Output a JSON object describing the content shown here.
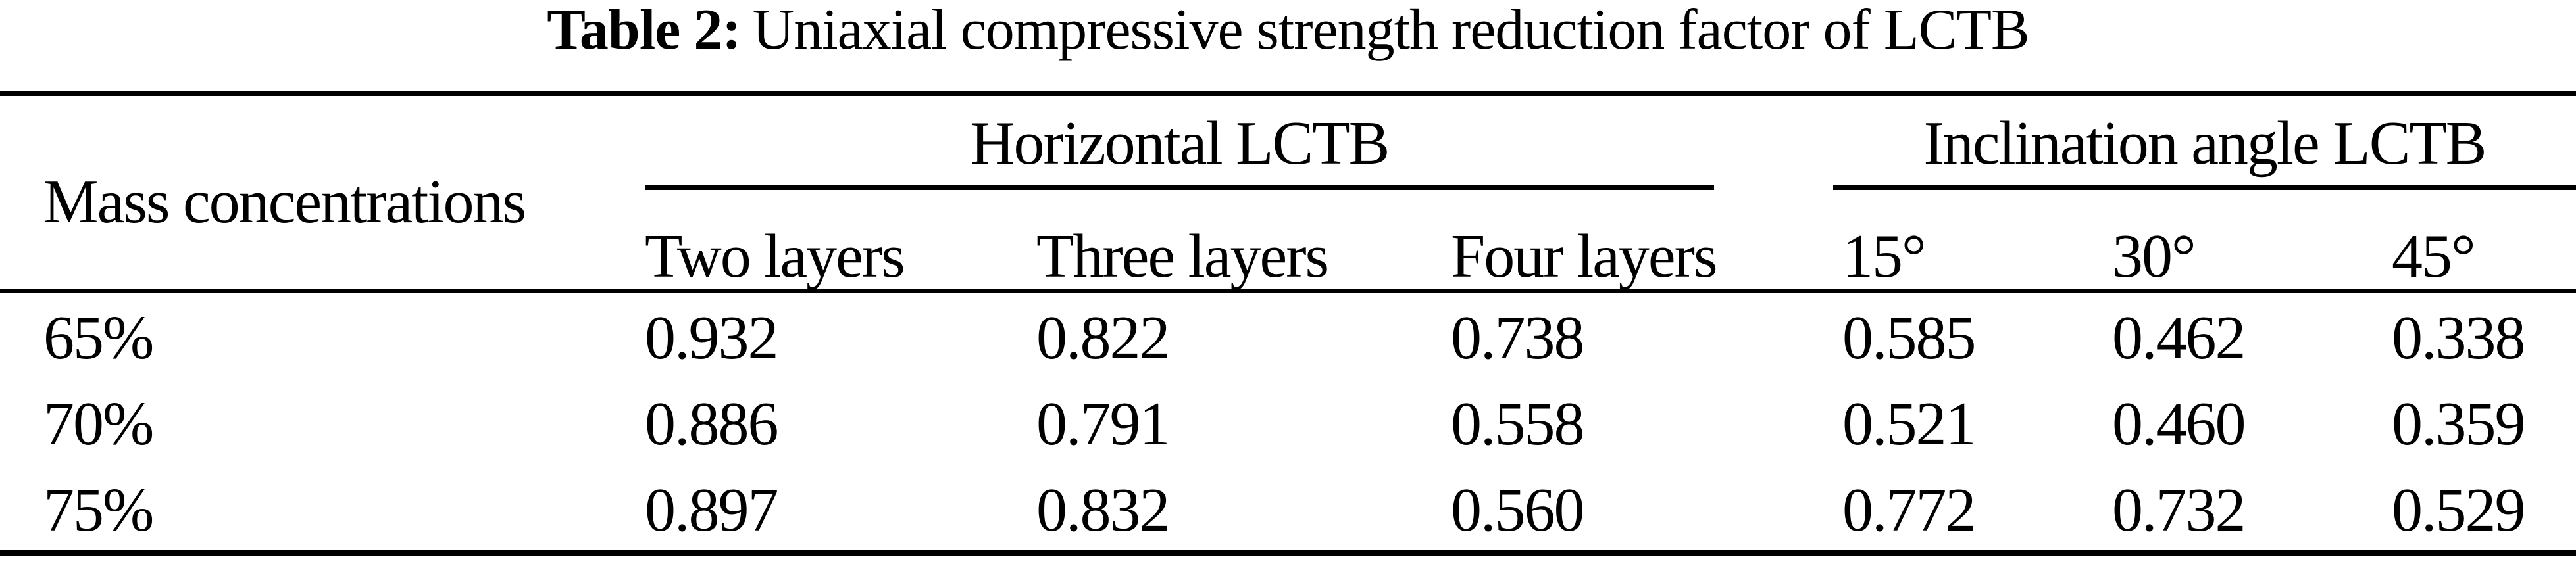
{
  "title": {
    "label": "Table 2:",
    "text": "Uniaxial compressive strength reduction factor of LCTB"
  },
  "colors": {
    "text": "#000000",
    "background": "#ffffff",
    "rule": "#000000"
  },
  "table": {
    "row_header": "Mass concentrations",
    "groups": [
      {
        "label": "Horizontal LCTB",
        "columns": [
          "Two layers",
          "Three layers",
          "Four layers"
        ]
      },
      {
        "label": "Inclination angle LCTB",
        "columns": [
          "15°",
          "30°",
          "45°"
        ]
      }
    ],
    "rows": [
      {
        "label": "65%",
        "values": [
          "0.932",
          "0.822",
          "0.738",
          "0.585",
          "0.462",
          "0.338"
        ]
      },
      {
        "label": "70%",
        "values": [
          "0.886",
          "0.791",
          "0.558",
          "0.521",
          "0.460",
          "0.359"
        ]
      },
      {
        "label": "75%",
        "values": [
          "0.897",
          "0.832",
          "0.560",
          "0.772",
          "0.732",
          "0.529"
        ]
      }
    ]
  },
  "chart_data": {
    "type": "table",
    "title": "Table 2: Uniaxial compressive strength reduction factor of LCTB",
    "row_header": "Mass concentrations",
    "column_groups": [
      {
        "group": "Horizontal LCTB",
        "columns": [
          "Two layers",
          "Three layers",
          "Four layers"
        ]
      },
      {
        "group": "Inclination angle LCTB",
        "columns": [
          "15°",
          "30°",
          "45°"
        ]
      }
    ],
    "rows": [
      {
        "mass_concentration": "65%",
        "values": [
          0.932,
          0.822,
          0.738,
          0.585,
          0.462,
          0.338
        ]
      },
      {
        "mass_concentration": "70%",
        "values": [
          0.886,
          0.791,
          0.558,
          0.521,
          0.46,
          0.359
        ]
      },
      {
        "mass_concentration": "75%",
        "values": [
          0.897,
          0.832,
          0.56,
          0.772,
          0.732,
          0.529
        ]
      }
    ]
  }
}
